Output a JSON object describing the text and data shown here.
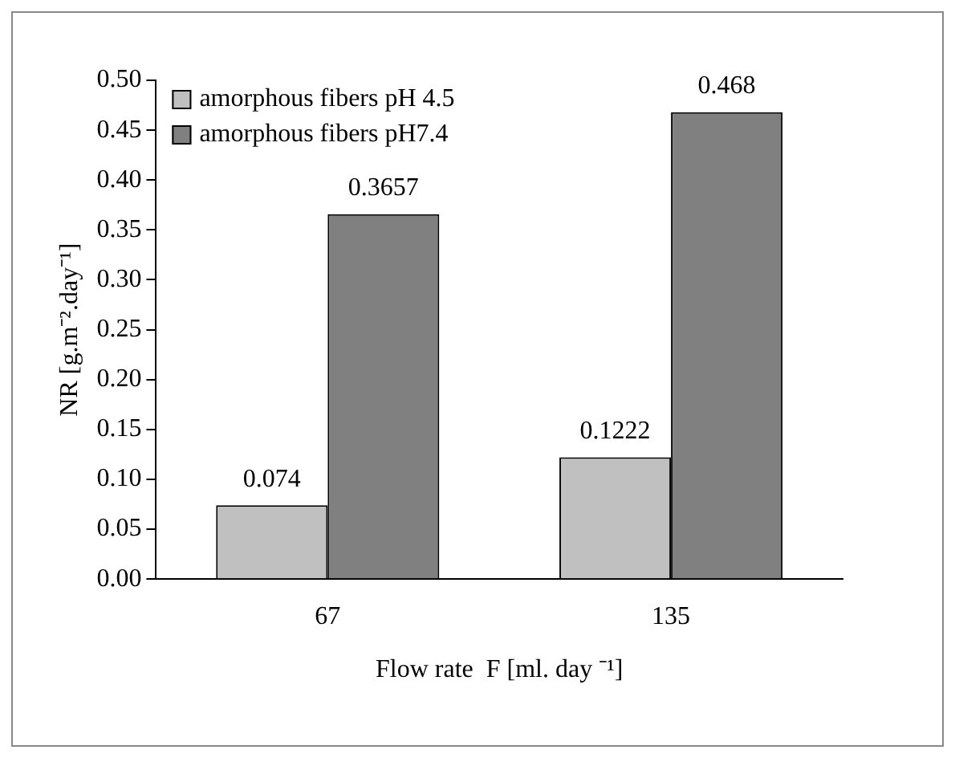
{
  "chart_data": {
    "type": "bar",
    "xlabel": "Flow rate  F [ml. day ⁻¹]",
    "ylabel": "NR [g.m⁻².day⁻¹]",
    "categories": [
      "67",
      "135"
    ],
    "series": [
      {
        "name": "amorphous fibers pH 4.5",
        "color": "#c0c0c0",
        "values": [
          0.074,
          0.1222
        ],
        "value_labels": [
          "0.074",
          "0.1222"
        ]
      },
      {
        "name": "amorphous fibers pH7.4",
        "color": "#808080",
        "values": [
          0.3657,
          0.468
        ],
        "value_labels": [
          "0.3657",
          "0.468"
        ]
      }
    ],
    "ylim": [
      0,
      0.5
    ],
    "yticks": [
      {
        "value": 0,
        "label": "0.00"
      },
      {
        "value": 0.05,
        "label": "0.05"
      },
      {
        "value": 0.1,
        "label": "0.10"
      },
      {
        "value": 0.15,
        "label": "0.15"
      },
      {
        "value": 0.2,
        "label": "0.20"
      },
      {
        "value": 0.25,
        "label": "0.25"
      },
      {
        "value": 0.3,
        "label": "0.30"
      },
      {
        "value": 0.35,
        "label": "0.35"
      },
      {
        "value": 0.4,
        "label": "0.40"
      },
      {
        "value": 0.45,
        "label": "0.45"
      },
      {
        "value": 0.5,
        "label": "0.50"
      }
    ],
    "grid": false,
    "legend": "top left"
  }
}
